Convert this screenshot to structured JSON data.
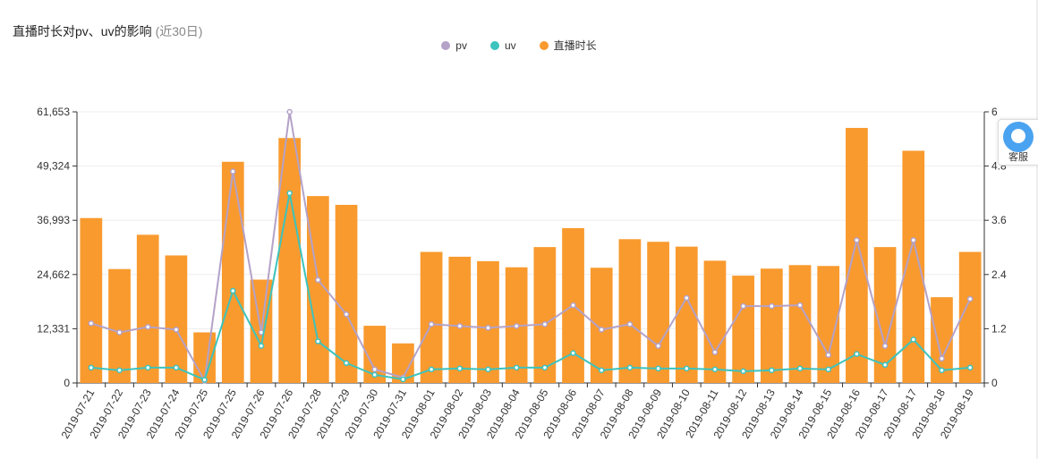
{
  "header": {
    "title": "直播时长对pv、uv的影响",
    "subtitle": "(近30日)"
  },
  "service_button": {
    "label": "客服",
    "icon": "customer-service-icon"
  },
  "colors": {
    "bar": "#f99a2e",
    "pv": "#b4a2c8",
    "uv": "#3cc3bd",
    "grid": "#eeeeee",
    "axis": "#333333"
  },
  "chart_data": {
    "type": "bar",
    "title": "直播时长对pv、uv的影响",
    "legend_position": "top-center",
    "categories": [
      "2019-07-21",
      "2019-07-22",
      "2019-07-23",
      "2019-07-24",
      "2019-07-25",
      "2019-07-25",
      "2019-07-26",
      "2019-07-26",
      "2019-07-28",
      "2019-07-29",
      "2019-07-30",
      "2019-07-31",
      "2019-08-01",
      "2019-08-02",
      "2019-08-03",
      "2019-08-04",
      "2019-08-05",
      "2019-08-06",
      "2019-08-07",
      "2019-08-08",
      "2019-08-09",
      "2019-08-10",
      "2019-08-11",
      "2019-08-12",
      "2019-08-13",
      "2019-08-14",
      "2019-08-15",
      "2019-08-16",
      "2019-08-17",
      "2019-08-17",
      "2019-08-18",
      "2019-08-19"
    ],
    "left_axis": {
      "ticks": [
        "0",
        "12,331",
        "24,662",
        "36,993",
        "49,324",
        "61,653"
      ],
      "range": [
        0,
        61653
      ]
    },
    "right_axis": {
      "ticks": [
        "0",
        "1.2",
        "2.4",
        "3.6",
        "4.8",
        "6"
      ],
      "range": [
        0,
        6
      ]
    },
    "grid": true,
    "series": [
      {
        "name": "直播时长",
        "kind": "bar",
        "axis": "left",
        "values": [
          37500,
          25900,
          33700,
          29000,
          11500,
          50300,
          23500,
          55700,
          42500,
          40500,
          13000,
          9000,
          29800,
          28700,
          27700,
          26300,
          30900,
          35200,
          26200,
          32700,
          32100,
          31000,
          27800,
          24400,
          26000,
          26800,
          26600,
          58000,
          30900,
          52800,
          19500,
          29800
        ]
      },
      {
        "name": "pv",
        "kind": "line",
        "axis": "right",
        "values": [
          1.32,
          1.12,
          1.24,
          1.18,
          0.05,
          4.68,
          1.12,
          6.0,
          2.28,
          1.52,
          0.3,
          0.12,
          1.3,
          1.26,
          1.22,
          1.26,
          1.3,
          1.72,
          1.18,
          1.3,
          0.82,
          1.88,
          0.68,
          1.7,
          1.7,
          1.72,
          0.62,
          3.16,
          0.82,
          3.16,
          0.54,
          1.86
        ]
      },
      {
        "name": "uv",
        "kind": "line",
        "axis": "right",
        "values": [
          0.34,
          0.28,
          0.34,
          0.34,
          0.07,
          2.04,
          0.82,
          4.2,
          0.92,
          0.44,
          0.18,
          0.08,
          0.3,
          0.32,
          0.3,
          0.34,
          0.34,
          0.66,
          0.28,
          0.34,
          0.32,
          0.32,
          0.3,
          0.26,
          0.28,
          0.32,
          0.3,
          0.64,
          0.4,
          0.96,
          0.28,
          0.34
        ]
      }
    ]
  }
}
